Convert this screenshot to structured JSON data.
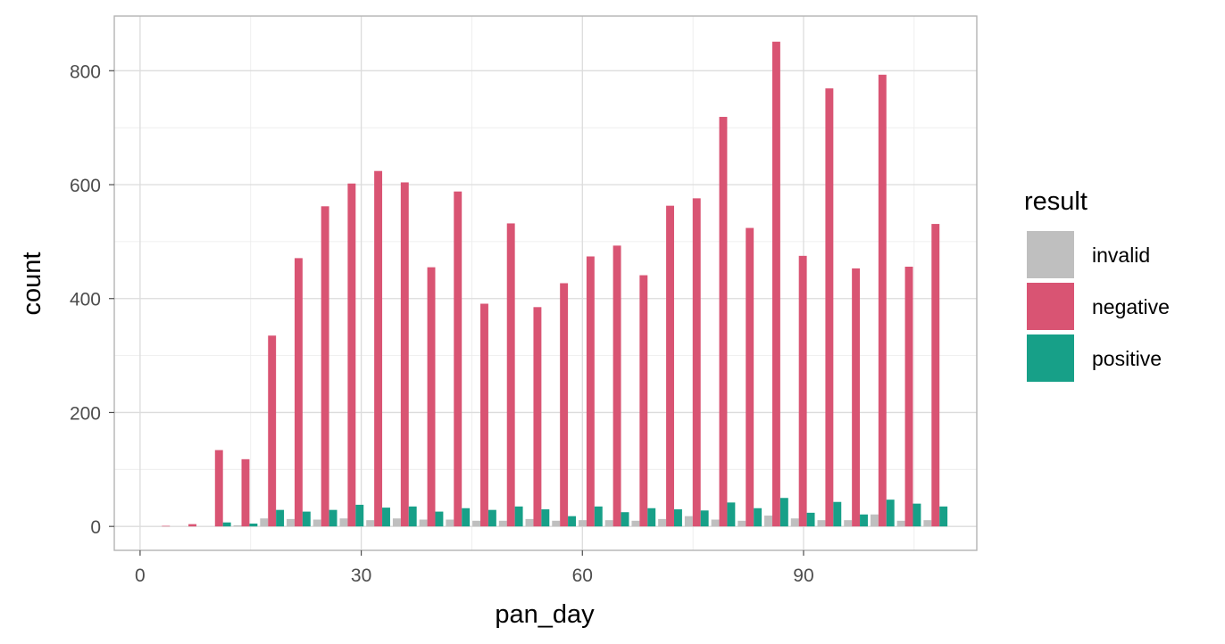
{
  "chart_data": {
    "type": "bar",
    "xlabel": "pan_day",
    "ylabel": "count",
    "xlim": [
      -3.5,
      113.5
    ],
    "ylim": [
      -42,
      896
    ],
    "x_ticks": [
      0,
      30,
      60,
      90
    ],
    "x_minor": [
      15,
      45,
      75,
      105
    ],
    "y_ticks": [
      0,
      200,
      400,
      600,
      800
    ],
    "y_minor": [
      100,
      300,
      500,
      700
    ],
    "bin_width": 3.6,
    "grid": true,
    "legend": {
      "title": "result",
      "placement": "right"
    },
    "x": [
      3.5,
      7.1,
      10.7,
      14.3,
      17.9,
      21.5,
      25.1,
      28.7,
      32.3,
      35.9,
      39.5,
      43.1,
      46.7,
      50.3,
      53.9,
      57.5,
      61.1,
      64.7,
      68.3,
      71.9,
      75.5,
      79.1,
      82.7,
      86.3,
      89.9,
      93.5,
      97.1,
      100.7,
      104.3,
      107.9
    ],
    "series": [
      {
        "name": "invalid",
        "color": "#BFBFBF",
        "values": [
          0,
          0,
          0,
          2,
          14,
          13,
          12,
          14,
          11,
          14,
          12,
          12,
          10,
          10,
          13,
          10,
          11,
          11,
          10,
          13,
          18,
          12,
          10,
          19,
          14,
          11,
          11,
          21,
          10,
          11
        ]
      },
      {
        "name": "negative",
        "color": "#D95473",
        "values": [
          1,
          4,
          134,
          118,
          335,
          471,
          562,
          602,
          624,
          604,
          455,
          588,
          391,
          532,
          385,
          427,
          474,
          493,
          441,
          563,
          576,
          719,
          524,
          851,
          475,
          769,
          453,
          793,
          456,
          531
        ]
      },
      {
        "name": "positive",
        "color": "#17A088",
        "values": [
          0,
          0,
          7,
          5,
          29,
          26,
          29,
          38,
          33,
          35,
          26,
          32,
          29,
          35,
          30,
          18,
          35,
          25,
          32,
          30,
          28,
          42,
          32,
          50,
          24,
          43,
          21,
          47,
          40,
          35
        ]
      }
    ]
  }
}
